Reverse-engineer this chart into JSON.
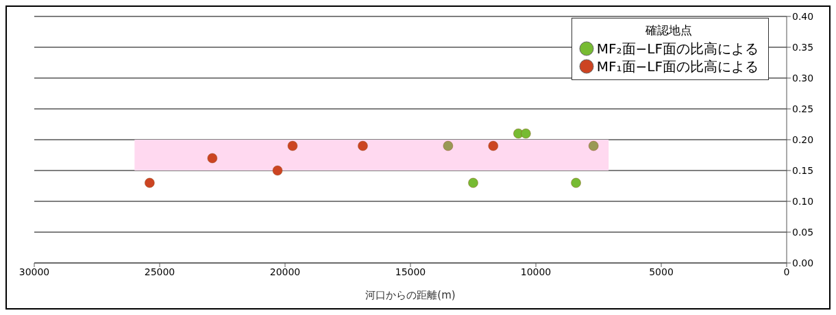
{
  "chart_data": {
    "type": "scatter",
    "xlabel": "河口からの距離(m)",
    "legend_title": "確認地点",
    "legend": "top right",
    "marker": "circle",
    "grid": "y",
    "xlim": [
      30000,
      0
    ],
    "xticks": [
      30000,
      25000,
      20000,
      15000,
      10000,
      5000,
      0
    ],
    "ylim": [
      0,
      0.4
    ],
    "yticks": [
      {
        "value": 0,
        "label": "0.00"
      },
      {
        "value": 0.05,
        "label": "0.05"
      },
      {
        "value": 0.1,
        "label": "0.10"
      },
      {
        "value": 0.15,
        "label": "0.15"
      },
      {
        "value": 0.2,
        "label": "0.20"
      },
      {
        "value": 0.25,
        "label": "0.25"
      },
      {
        "value": 0.3,
        "label": "0.30"
      },
      {
        "value": 0.35,
        "label": "0.35"
      },
      {
        "value": 0.4,
        "label": "0.40"
      }
    ],
    "bands": [
      {
        "axis": "y",
        "from": 0.15,
        "to": 0.2,
        "color": "#ffd9f0"
      }
    ],
    "series": [
      {
        "name": "MF₂面−LF面の比高による",
        "color": "#77bb33",
        "colors": [
          "#999955",
          "#77bb33",
          "#77bb33",
          "#77bb33",
          "#77bb33",
          "#999955"
        ],
        "x": [
          13500,
          12500,
          10700,
          10400,
          8400,
          7700
        ],
        "values": [
          0.19,
          0.13,
          0.21,
          0.21,
          0.13,
          0.19
        ]
      },
      {
        "name": "MF₁面−LF面の比高による",
        "color": "#cc4422",
        "x": [
          25400,
          22900,
          20300,
          19700,
          16900,
          11700
        ],
        "values": [
          0.13,
          0.17,
          0.15,
          0.19,
          0.19,
          0.19
        ]
      }
    ]
  }
}
